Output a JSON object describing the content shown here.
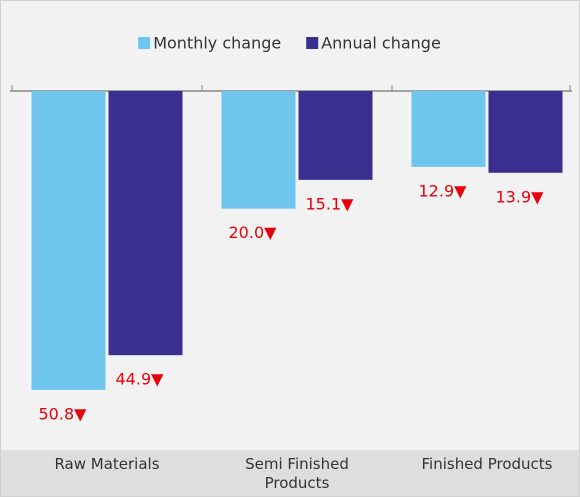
{
  "chart_data": {
    "type": "bar",
    "categories": [
      "Raw Materials",
      "Semi Finished Products",
      "Finished Products"
    ],
    "series": [
      {
        "name": "Monthly change",
        "color": "#6ec6ee",
        "values": [
          -50.8,
          -20.0,
          -12.9
        ],
        "value_labels": [
          "50.8▼",
          "20.0▼",
          "12.9▼"
        ]
      },
      {
        "name": "Annual change",
        "color": "#3a2e8f",
        "values": [
          -44.9,
          -15.1,
          -13.9
        ],
        "value_labels": [
          "44.9▼",
          "15.1▼",
          "13.9▼"
        ]
      }
    ],
    "ylim": [
      -60,
      0
    ],
    "label_color": "#e8000b"
  }
}
